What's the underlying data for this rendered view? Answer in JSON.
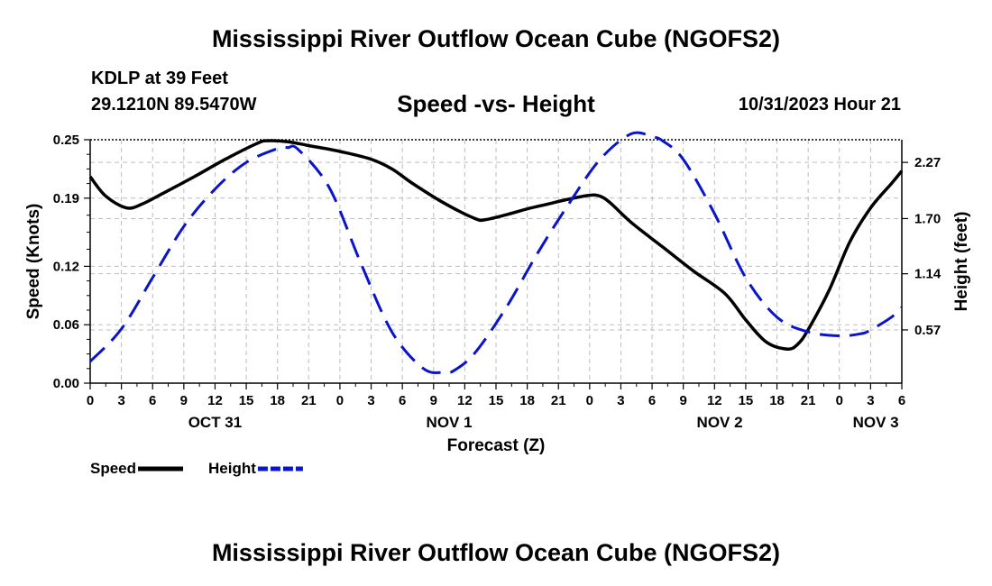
{
  "title": "Mississippi River Outflow Ocean Cube (NGOFS2)",
  "station": "KDLP at 39 Feet",
  "location": "29.1210N  89.5470W",
  "subtitle": "Speed -vs- Height",
  "datetime": "10/31/2023 Hour 21",
  "footer_title": "Mississippi River Outflow Ocean Cube (NGOFS2)",
  "colors": {
    "speed": "#000000",
    "height": "#0a14c8",
    "grid": "#bdbdbd"
  },
  "chart_data": {
    "type": "line",
    "xlabel": "Forecast (Z)",
    "ylabel": "Speed (Knots)",
    "y2label": "Height (feet)",
    "xlim": [
      0,
      78
    ],
    "ylim": [
      0,
      0.25
    ],
    "y2lim": [
      0.03,
      2.5
    ],
    "yticks": [
      "0.00",
      "0.06",
      "0.12",
      "0.19",
      "0.25"
    ],
    "y2ticks": [
      "0.57",
      "1.14",
      "1.70",
      "2.27"
    ],
    "x_tick_labels": [
      "0",
      "3",
      "6",
      "9",
      "12",
      "15",
      "18",
      "21",
      "0",
      "3",
      "6",
      "9",
      "12",
      "15",
      "18",
      "21",
      "0",
      "3",
      "6",
      "9",
      "12",
      "15",
      "18",
      "21",
      "0",
      "3",
      "6"
    ],
    "date_labels": [
      {
        "label": "OCT 31",
        "hour": 12
      },
      {
        "label": "NOV 1",
        "hour": 34.5
      },
      {
        "label": "NOV 2",
        "hour": 60.5
      },
      {
        "label": "NOV 3",
        "hour": 75.5
      }
    ],
    "legend": [
      {
        "name": "Speed",
        "color": "#000000",
        "style": "solid"
      },
      {
        "name": "Height",
        "color": "#0a14c8",
        "style": "dashed"
      }
    ],
    "series": [
      {
        "name": "Speed",
        "axis": "left",
        "x": [
          0,
          1.5,
          3.5,
          5,
          7,
          10,
          13,
          16,
          17,
          19,
          21,
          24,
          27,
          29,
          31,
          34,
          37,
          38,
          40,
          42,
          44,
          46,
          48,
          49,
          50,
          52,
          55,
          58,
          61,
          63,
          65,
          67,
          68,
          69,
          71,
          73,
          75,
          77,
          78
        ],
        "y": [
          0.212,
          0.192,
          0.18,
          0.184,
          0.195,
          0.212,
          0.23,
          0.246,
          0.249,
          0.248,
          0.244,
          0.238,
          0.23,
          0.22,
          0.205,
          0.185,
          0.169,
          0.168,
          0.173,
          0.179,
          0.184,
          0.189,
          0.193,
          0.192,
          0.185,
          0.165,
          0.14,
          0.115,
          0.092,
          0.065,
          0.042,
          0.035,
          0.04,
          0.055,
          0.095,
          0.145,
          0.18,
          0.205,
          0.218
        ]
      },
      {
        "name": "Height",
        "axis": "right",
        "x": [
          0,
          3,
          6,
          9,
          12,
          15,
          18,
          19,
          20,
          23,
          26,
          29,
          32,
          34,
          35,
          37,
          40,
          43,
          46,
          49,
          52,
          54,
          55,
          57,
          60,
          63,
          66,
          69,
          72,
          74,
          75,
          77,
          78
        ],
        "y": [
          0.25,
          0.58,
          1.1,
          1.62,
          2.0,
          2.27,
          2.41,
          2.42,
          2.4,
          2.01,
          1.25,
          0.55,
          0.18,
          0.14,
          0.16,
          0.34,
          0.8,
          1.35,
          1.85,
          2.3,
          2.56,
          2.53,
          2.49,
          2.3,
          1.75,
          1.1,
          0.7,
          0.55,
          0.51,
          0.53,
          0.57,
          0.7,
          0.8
        ]
      }
    ]
  }
}
